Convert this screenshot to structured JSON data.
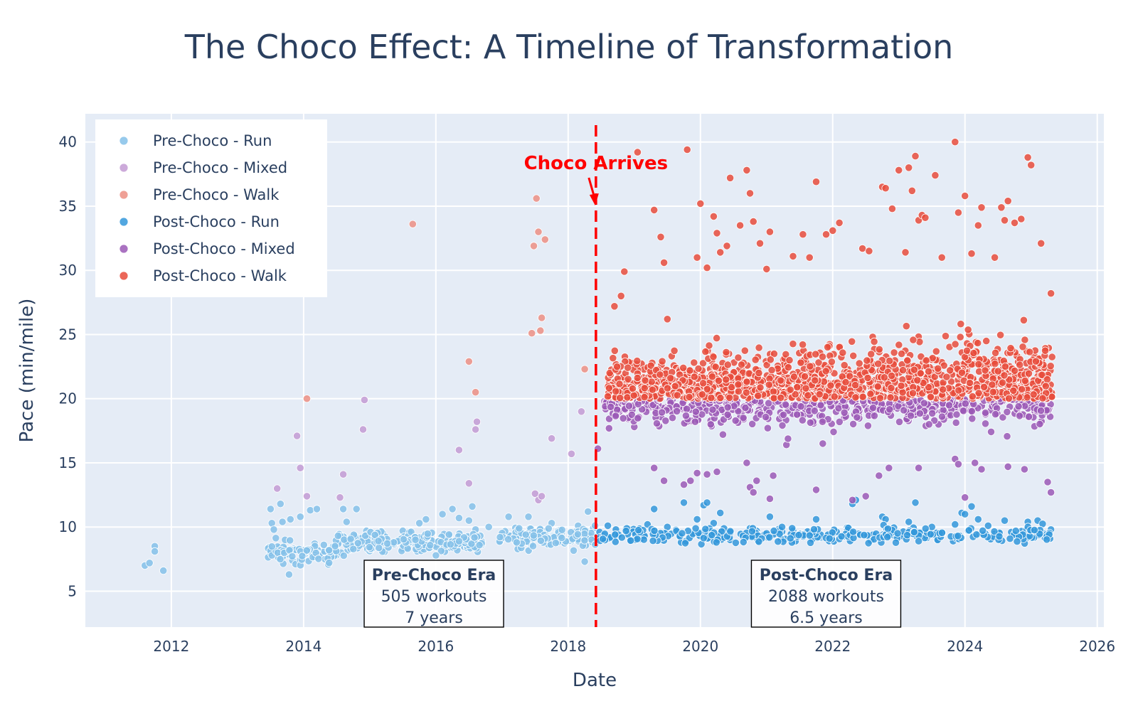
{
  "chart_data": {
    "type": "scatter",
    "title": "The Choco Effect: A Timeline of Transformation",
    "xlabel": "Date",
    "ylabel": "Pace (min/mile)",
    "xlim": [
      2010.7,
      2026.1
    ],
    "ylim": [
      2.2,
      42.2
    ],
    "x_ticks": [
      2012,
      2014,
      2016,
      2018,
      2020,
      2022,
      2024,
      2026
    ],
    "y_ticks": [
      5,
      10,
      15,
      20,
      25,
      30,
      35,
      40
    ],
    "grid": true,
    "legend_position": "top-left",
    "event": {
      "label": "Choco Arrives",
      "x": 2018.42,
      "color": "#ff0000"
    },
    "annotations": [
      {
        "id": "pre",
        "title": "Pre-Choco Era",
        "line1": "505 workouts",
        "line2": "7 years",
        "x": 2015.97,
        "y": 4.6
      },
      {
        "id": "post",
        "title": "Post-Choco Era",
        "line1": "2088 workouts",
        "line2": "6.5 years",
        "x": 2021.9,
        "y": 4.6
      }
    ],
    "series": [
      {
        "name": "Pre-Choco - Run",
        "color": "#85c1e9",
        "opacity": 0.85
      },
      {
        "name": "Pre-Choco - Mixed",
        "color": "#c39bd3",
        "opacity": 0.85
      },
      {
        "name": "Pre-Choco - Walk",
        "color": "#ec8f84",
        "opacity": 0.85
      },
      {
        "name": "Post-Choco - Run",
        "color": "#3498db",
        "opacity": 0.85
      },
      {
        "name": "Post-Choco - Mixed",
        "color": "#9b59b6",
        "opacity": 0.85
      },
      {
        "name": "Post-Choco - Walk",
        "color": "#e74c3c",
        "opacity": 0.85
      }
    ],
    "points": {
      "pre_run": [
        [
          2011.6,
          7.0
        ],
        [
          2011.67,
          7.2
        ],
        [
          2011.75,
          8.5
        ],
        [
          2011.75,
          8.1
        ],
        [
          2011.88,
          6.6
        ],
        [
          2013.5,
          11.4
        ],
        [
          2013.52,
          10.3
        ],
        [
          2013.55,
          9.8
        ],
        [
          2013.6,
          8.0
        ],
        [
          2013.65,
          11.8
        ],
        [
          2013.68,
          10.4
        ],
        [
          2013.72,
          9.0
        ],
        [
          2013.78,
          6.3
        ],
        [
          2013.8,
          10.6
        ],
        [
          2013.85,
          8.3
        ],
        [
          2013.95,
          10.8
        ],
        [
          2014.1,
          11.3
        ],
        [
          2014.2,
          11.4
        ],
        [
          2014.6,
          11.4
        ],
        [
          2014.65,
          10.4
        ],
        [
          2014.8,
          11.4
        ],
        [
          2014.95,
          9.7
        ],
        [
          2015.2,
          9.5
        ],
        [
          2015.5,
          9.7
        ],
        [
          2015.75,
          10.3
        ],
        [
          2015.85,
          10.6
        ],
        [
          2016.1,
          11.0
        ],
        [
          2016.25,
          11.4
        ],
        [
          2016.35,
          10.7
        ],
        [
          2016.5,
          10.5
        ],
        [
          2016.55,
          11.6
        ],
        [
          2016.6,
          9.8
        ],
        [
          2016.8,
          10.0
        ],
        [
          2017.1,
          10.8
        ],
        [
          2017.4,
          10.8
        ],
        [
          2017.6,
          9.5
        ],
        [
          2017.75,
          10.3
        ],
        [
          2017.85,
          9.7
        ],
        [
          2018.05,
          8.9
        ],
        [
          2018.15,
          10.1
        ],
        [
          2018.25,
          7.3
        ],
        [
          2018.3,
          11.2
        ],
        [
          2018.38,
          9.9
        ]
      ],
      "pre_mixed": [
        [
          2013.6,
          13.0
        ],
        [
          2013.9,
          17.1
        ],
        [
          2013.95,
          14.6
        ],
        [
          2014.05,
          12.4
        ],
        [
          2014.55,
          12.3
        ],
        [
          2014.6,
          14.1
        ],
        [
          2014.9,
          17.6
        ],
        [
          2014.92,
          19.9
        ],
        [
          2016.35,
          16.0
        ],
        [
          2016.5,
          13.4
        ],
        [
          2016.6,
          17.6
        ],
        [
          2016.62,
          18.2
        ],
        [
          2017.5,
          12.6
        ],
        [
          2017.55,
          12.1
        ],
        [
          2017.6,
          12.4
        ],
        [
          2017.75,
          16.9
        ],
        [
          2018.05,
          15.7
        ],
        [
          2018.2,
          19.0
        ]
      ],
      "pre_walk": [
        [
          2014.05,
          20.0
        ],
        [
          2015.65,
          33.6
        ],
        [
          2016.5,
          22.9
        ],
        [
          2016.6,
          20.5
        ],
        [
          2017.45,
          25.1
        ],
        [
          2017.48,
          31.9
        ],
        [
          2017.52,
          35.6
        ],
        [
          2017.55,
          33.0
        ],
        [
          2017.58,
          25.3
        ],
        [
          2017.6,
          26.3
        ],
        [
          2017.65,
          32.4
        ],
        [
          2018.25,
          22.3
        ]
      ],
      "post_run": [
        [
          2018.6,
          10.1
        ],
        [
          2018.9,
          9.9
        ],
        [
          2019.2,
          10.2
        ],
        [
          2019.3,
          11.4
        ],
        [
          2019.5,
          10.0
        ],
        [
          2019.75,
          11.9
        ],
        [
          2019.95,
          10.6
        ],
        [
          2020.05,
          11.7
        ],
        [
          2020.1,
          11.9
        ],
        [
          2020.2,
          10.3
        ],
        [
          2020.3,
          11.1
        ],
        [
          2020.45,
          9.0
        ],
        [
          2020.75,
          9.9
        ],
        [
          2021.05,
          10.8
        ],
        [
          2021.4,
          9.7
        ],
        [
          2021.75,
          10.6
        ],
        [
          2022.3,
          11.8
        ],
        [
          2022.35,
          12.1
        ],
        [
          2022.75,
          10.8
        ],
        [
          2022.8,
          10.6
        ],
        [
          2023.15,
          10.4
        ],
        [
          2023.25,
          11.9
        ],
        [
          2023.5,
          10.0
        ],
        [
          2023.85,
          10.2
        ],
        [
          2023.95,
          11.1
        ],
        [
          2024.0,
          11.0
        ],
        [
          2024.05,
          9.7
        ],
        [
          2024.1,
          11.6
        ],
        [
          2024.2,
          10.6
        ],
        [
          2024.35,
          10.1
        ],
        [
          2024.5,
          9.4
        ],
        [
          2024.6,
          10.5
        ],
        [
          2024.7,
          9.6
        ],
        [
          2024.95,
          10.4
        ],
        [
          2025.1,
          10.5
        ],
        [
          2025.2,
          9.5
        ],
        [
          2025.3,
          9.8
        ]
      ],
      "post_mixed": [
        [
          2018.45,
          16.1
        ],
        [
          2018.55,
          19.8
        ],
        [
          2019.0,
          17.8
        ],
        [
          2019.3,
          14.6
        ],
        [
          2019.45,
          13.6
        ],
        [
          2019.75,
          13.3
        ],
        [
          2019.85,
          13.6
        ],
        [
          2019.95,
          14.2
        ],
        [
          2020.1,
          14.1
        ],
        [
          2020.25,
          14.3
        ],
        [
          2020.7,
          15.0
        ],
        [
          2020.75,
          13.1
        ],
        [
          2020.8,
          12.7
        ],
        [
          2020.85,
          13.6
        ],
        [
          2021.05,
          12.2
        ],
        [
          2021.1,
          14.0
        ],
        [
          2021.3,
          16.4
        ],
        [
          2021.75,
          12.9
        ],
        [
          2021.85,
          16.5
        ],
        [
          2022.3,
          12.1
        ],
        [
          2022.5,
          12.4
        ],
        [
          2022.7,
          14.0
        ],
        [
          2022.85,
          14.6
        ],
        [
          2023.3,
          14.6
        ],
        [
          2023.6,
          18.0
        ],
        [
          2023.85,
          15.3
        ],
        [
          2023.9,
          14.9
        ],
        [
          2024.0,
          12.3
        ],
        [
          2024.15,
          15.0
        ],
        [
          2024.25,
          14.5
        ],
        [
          2024.65,
          14.7
        ],
        [
          2024.9,
          14.5
        ],
        [
          2025.15,
          18.1
        ],
        [
          2025.25,
          13.5
        ],
        [
          2025.3,
          12.7
        ]
      ],
      "post_walk": [
        [
          2018.7,
          27.2
        ],
        [
          2018.8,
          28.0
        ],
        [
          2018.85,
          29.9
        ],
        [
          2019.05,
          39.2
        ],
        [
          2019.3,
          34.7
        ],
        [
          2019.4,
          32.6
        ],
        [
          2019.45,
          30.6
        ],
        [
          2019.5,
          26.2
        ],
        [
          2019.8,
          39.4
        ],
        [
          2019.95,
          31.0
        ],
        [
          2020.0,
          35.2
        ],
        [
          2020.1,
          30.2
        ],
        [
          2020.2,
          34.2
        ],
        [
          2020.25,
          32.9
        ],
        [
          2020.3,
          31.4
        ],
        [
          2020.4,
          31.9
        ],
        [
          2020.45,
          37.2
        ],
        [
          2020.6,
          33.5
        ],
        [
          2020.7,
          37.8
        ],
        [
          2020.75,
          36.0
        ],
        [
          2020.8,
          33.8
        ],
        [
          2020.9,
          32.1
        ],
        [
          2021.0,
          30.1
        ],
        [
          2021.05,
          33.0
        ],
        [
          2021.4,
          31.1
        ],
        [
          2021.55,
          32.8
        ],
        [
          2021.65,
          31.0
        ],
        [
          2021.75,
          36.9
        ],
        [
          2021.9,
          32.8
        ],
        [
          2022.0,
          33.1
        ],
        [
          2022.1,
          33.7
        ],
        [
          2022.45,
          31.7
        ],
        [
          2022.55,
          31.5
        ],
        [
          2022.75,
          36.5
        ],
        [
          2022.8,
          36.4
        ],
        [
          2022.9,
          34.8
        ],
        [
          2023.0,
          37.8
        ],
        [
          2023.1,
          31.4
        ],
        [
          2023.15,
          38.0
        ],
        [
          2023.2,
          36.2
        ],
        [
          2023.25,
          38.9
        ],
        [
          2023.3,
          33.9
        ],
        [
          2023.35,
          34.3
        ],
        [
          2023.4,
          34.1
        ],
        [
          2023.55,
          37.4
        ],
        [
          2023.65,
          31.0
        ],
        [
          2023.85,
          40.0
        ],
        [
          2023.9,
          34.5
        ],
        [
          2024.0,
          35.8
        ],
        [
          2024.1,
          31.3
        ],
        [
          2024.2,
          33.5
        ],
        [
          2024.25,
          34.9
        ],
        [
          2024.45,
          31.0
        ],
        [
          2024.55,
          34.9
        ],
        [
          2024.6,
          33.9
        ],
        [
          2024.65,
          35.4
        ],
        [
          2024.75,
          33.7
        ],
        [
          2024.85,
          34.0
        ],
        [
          2024.95,
          38.8
        ],
        [
          2025.0,
          38.2
        ],
        [
          2025.15,
          32.1
        ],
        [
          2025.3,
          28.2
        ]
      ]
    }
  }
}
